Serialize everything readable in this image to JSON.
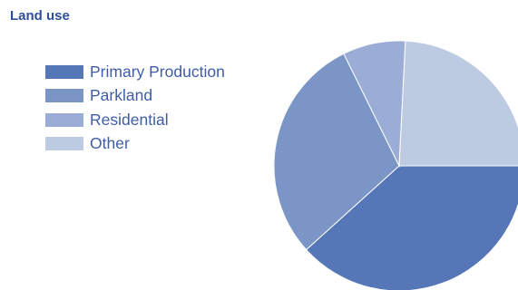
{
  "chart_data": {
    "type": "pie",
    "title": "Land use",
    "categories": [
      "Primary Production",
      "Parkland",
      "Residential",
      "Other"
    ],
    "values": [
      38.3,
      29.4,
      8.1,
      24.2
    ],
    "colors": [
      "#5577b8",
      "#7b96c6",
      "#9badd7",
      "#bccbe1"
    ],
    "legend_position": "left",
    "start_angle_deg": 0,
    "direction": "clockwise"
  }
}
